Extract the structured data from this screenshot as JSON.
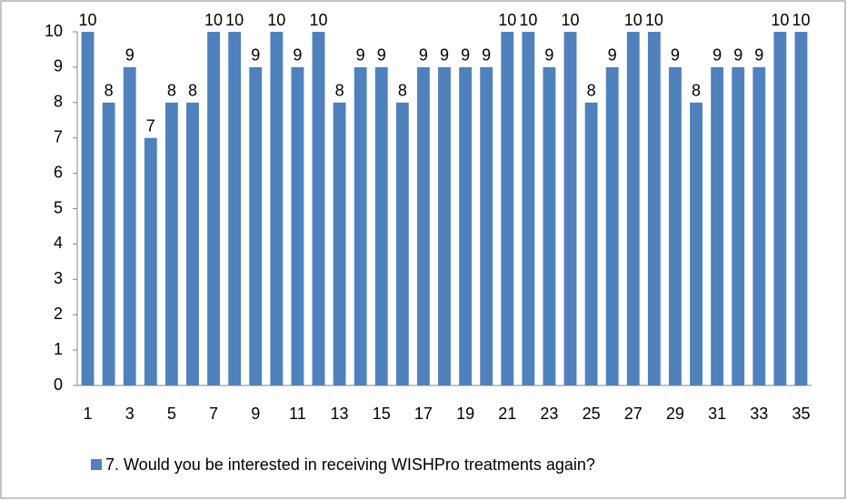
{
  "chart_data": {
    "type": "bar",
    "categories": [
      1,
      null,
      3,
      null,
      5,
      null,
      7,
      null,
      9,
      null,
      11,
      null,
      13,
      null,
      15,
      null,
      17,
      null,
      19,
      null,
      21,
      null,
      23,
      null,
      25,
      null,
      27,
      null,
      29,
      null,
      31,
      null,
      33,
      null,
      35
    ],
    "series": [
      {
        "name": "7. Would you be interested in receiving WISHPro treatments again?",
        "color": "#4f81bd",
        "values": [
          10,
          8,
          9,
          7,
          8,
          8,
          10,
          10,
          9,
          10,
          9,
          10,
          8,
          9,
          9,
          8,
          9,
          9,
          9,
          9,
          10,
          10,
          9,
          10,
          8,
          9,
          10,
          10,
          9,
          8,
          9,
          9,
          9,
          10,
          10
        ]
      }
    ],
    "ylim": [
      0,
      10
    ],
    "yticks": [
      0,
      1,
      2,
      3,
      4,
      5,
      6,
      7,
      8,
      9,
      10
    ],
    "grid": false,
    "data_labels": true,
    "legend": "bottom"
  }
}
